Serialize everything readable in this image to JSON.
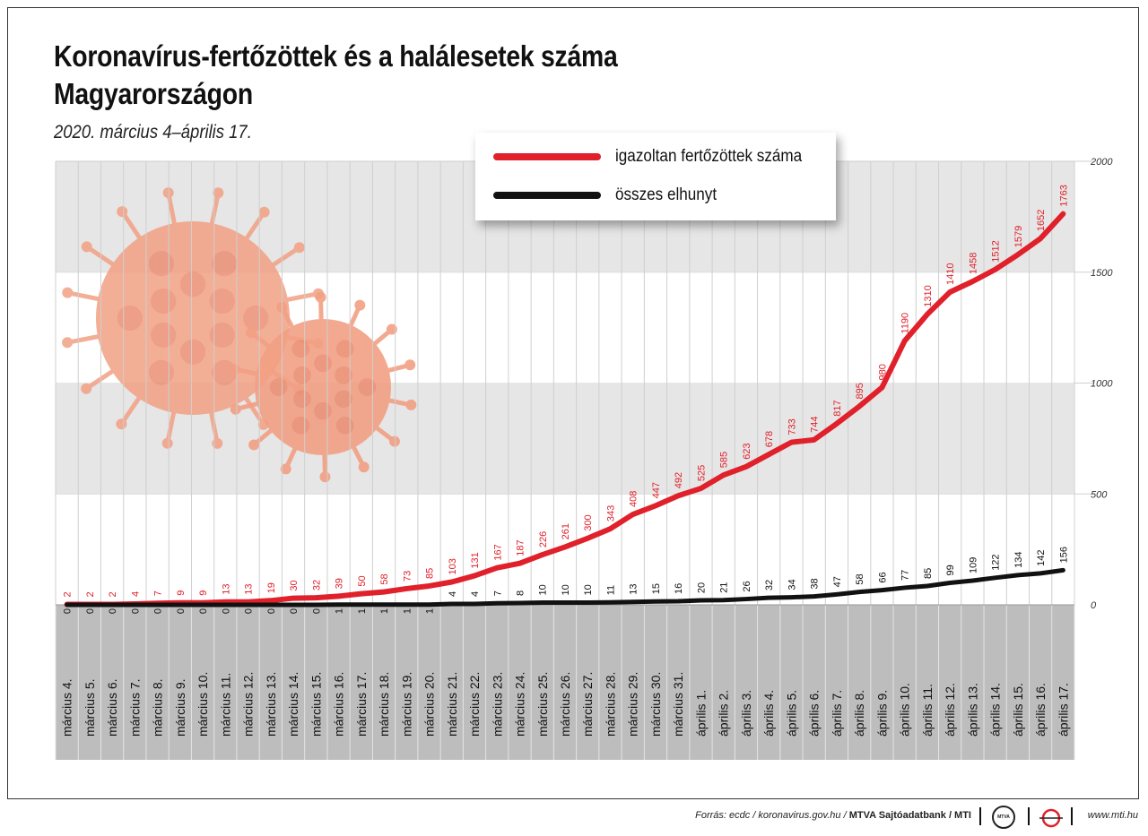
{
  "header": {
    "title": "Koronavírus-fertőzöttek és a halálesetek száma Magyarországon",
    "subtitle": "2020. március 4–április 17."
  },
  "legend": {
    "items": [
      {
        "label": "igazoltan fertőzöttek száma",
        "color": "#e0202a"
      },
      {
        "label": "összes elhunyt",
        "color": "#111111"
      }
    ]
  },
  "footer": {
    "source_prefix": "Forrás: ecdc / koronavirus.gov.hu / ",
    "source_bold": "MTVA Sajtóadatbank / MTI",
    "mtva_logo_text": "MTVA",
    "site": "www.mti.hu"
  },
  "colors": {
    "infected": "#e0202a",
    "deaths": "#111111",
    "band_grey": "#e6e6e6",
    "axis_area": "#bdbdbd",
    "virus": "#f2a084"
  },
  "chart_data": {
    "type": "line",
    "categories": [
      "március 4.",
      "március 5.",
      "március 6.",
      "március 7.",
      "március 8.",
      "március 9.",
      "március 10.",
      "március 11.",
      "március 12.",
      "március 13.",
      "március 14.",
      "március 15.",
      "március 16.",
      "március 17.",
      "március 18.",
      "március 19.",
      "március 20.",
      "március 21.",
      "március 22.",
      "március 23.",
      "március 24.",
      "március 25.",
      "március 26.",
      "március 27.",
      "március 28.",
      "március 29.",
      "március 30.",
      "március 31.",
      "április 1.",
      "április 2.",
      "április 3.",
      "április 4.",
      "április 5.",
      "április 6.",
      "április 7.",
      "április 8.",
      "április 9.",
      "április 10.",
      "április 11.",
      "április 12.",
      "április 13.",
      "április 14.",
      "április 15.",
      "április 16.",
      "április 17."
    ],
    "series": [
      {
        "name": "igazoltan fertőzöttek száma",
        "values": [
          2,
          2,
          2,
          4,
          7,
          9,
          9,
          13,
          13,
          19,
          30,
          32,
          39,
          50,
          58,
          73,
          85,
          103,
          131,
          167,
          187,
          226,
          261,
          300,
          343,
          408,
          447,
          492,
          525,
          585,
          623,
          678,
          733,
          744,
          817,
          895,
          980,
          1190,
          1310,
          1410,
          1458,
          1512,
          1579,
          1652,
          1763
        ]
      },
      {
        "name": "összes elhunyt",
        "values": [
          0,
          0,
          0,
          0,
          0,
          0,
          0,
          0,
          0,
          0,
          0,
          0,
          1,
          1,
          1,
          1,
          1,
          4,
          4,
          7,
          8,
          10,
          10,
          10,
          11,
          13,
          15,
          16,
          20,
          21,
          26,
          32,
          34,
          38,
          47,
          58,
          66,
          77,
          85,
          99,
          109,
          122,
          134,
          142,
          156
        ]
      }
    ],
    "ylim": [
      0,
      2000
    ],
    "yticks": [
      0,
      500,
      1000,
      1500,
      2000
    ],
    "grid": true,
    "legend_position": "top-center"
  }
}
